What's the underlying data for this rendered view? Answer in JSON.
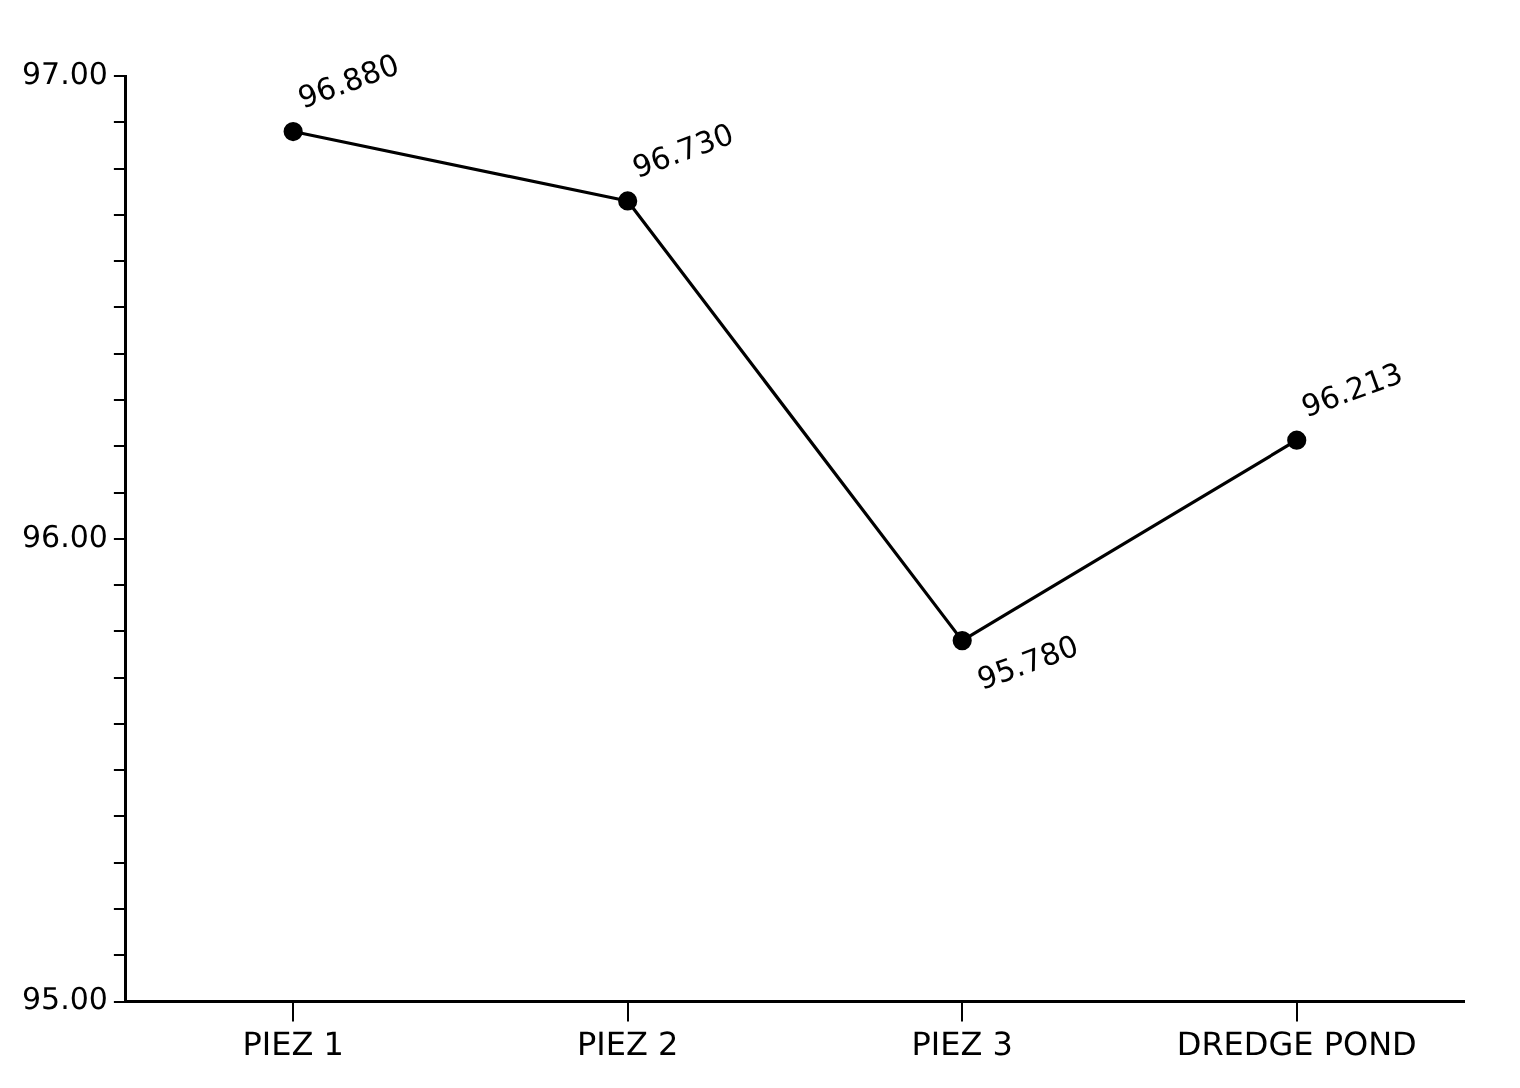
{
  "chart_data": {
    "type": "line",
    "categories": [
      "PIEZ 1",
      "PIEZ 2",
      "PIEZ 3",
      "DREDGE POND"
    ],
    "series": [
      {
        "color": "#000000",
        "values": [
          96.88,
          96.73,
          95.78,
          96.213
        ],
        "value_labels": [
          "96.880",
          "96.730",
          "95.780",
          "96.213"
        ]
      }
    ],
    "ylim": [
      95,
      97
    ],
    "yticks": [
      {
        "value": 95,
        "label": "95.00"
      },
      {
        "value": 95.1,
        "label": null
      },
      {
        "value": 95.2,
        "label": null
      },
      {
        "value": 95.3,
        "label": null
      },
      {
        "value": 95.4,
        "label": null
      },
      {
        "value": 95.5,
        "label": null
      },
      {
        "value": 95.6,
        "label": null
      },
      {
        "value": 95.7,
        "label": null
      },
      {
        "value": 95.8,
        "label": null
      },
      {
        "value": 95.9,
        "label": null
      },
      {
        "value": 96,
        "label": "96.00"
      },
      {
        "value": 96.1,
        "label": null
      },
      {
        "value": 96.2,
        "label": null
      },
      {
        "value": 96.3,
        "label": null
      },
      {
        "value": 96.4,
        "label": null
      },
      {
        "value": 96.5,
        "label": null
      },
      {
        "value": 96.6,
        "label": null
      },
      {
        "value": 96.7,
        "label": null
      },
      {
        "value": 96.8,
        "label": null
      },
      {
        "value": 96.9,
        "label": null
      },
      {
        "value": 97,
        "label": "97.00"
      }
    ],
    "grid": false,
    "legend": false,
    "marker": "circle",
    "line_style": "solid"
  }
}
